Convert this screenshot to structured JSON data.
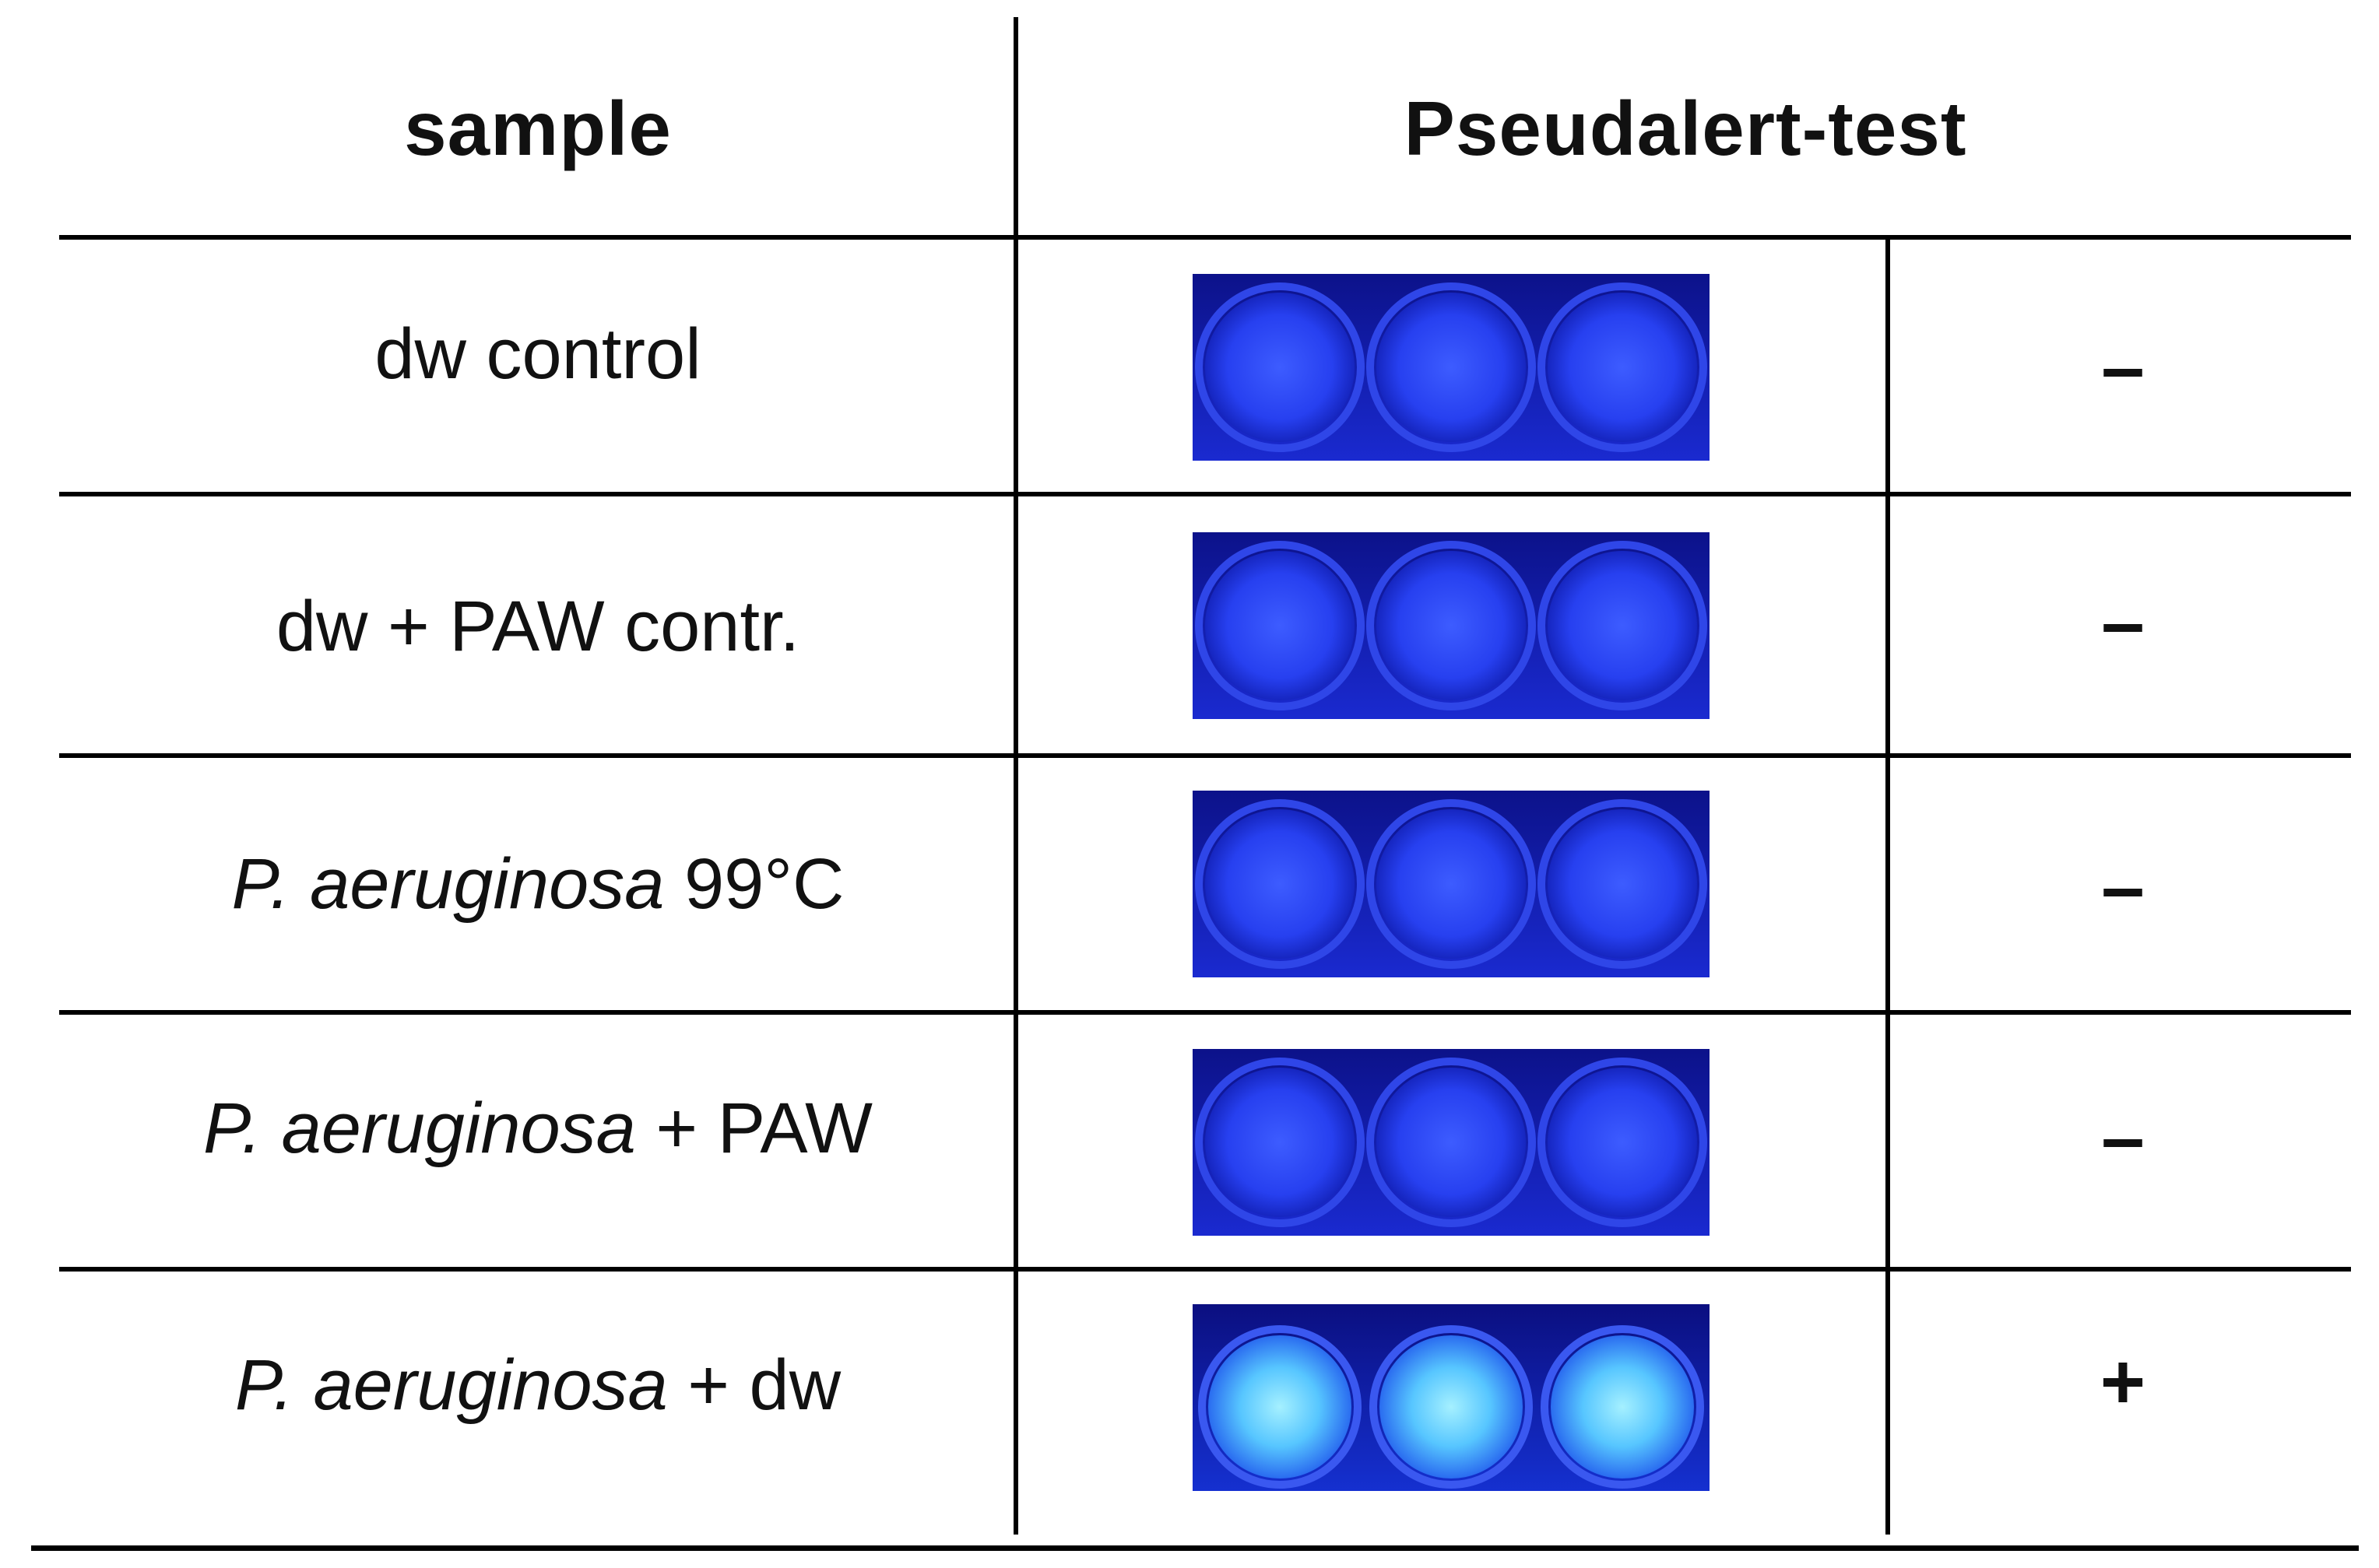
{
  "table": {
    "headers": {
      "sample": "sample",
      "test": "Pseudalert-test"
    },
    "rows": [
      {
        "sample_parts": {
          "italic": "",
          "rest": "dw control"
        },
        "result": "–",
        "plate_photo": "microplate-three-wells-dark-blue"
      },
      {
        "sample_parts": {
          "italic": "",
          "rest": "dw + PAW contr."
        },
        "result": "–",
        "plate_photo": "microplate-three-wells-dark-blue"
      },
      {
        "sample_parts": {
          "italic": "P. aeruginosa",
          "rest": "99°C"
        },
        "result": "–",
        "plate_photo": "microplate-three-wells-dark-blue"
      },
      {
        "sample_parts": {
          "italic": "P. aeruginosa",
          "rest": "+ PAW"
        },
        "result": "–",
        "plate_photo": "microplate-three-wells-dark-blue"
      },
      {
        "sample_parts": {
          "italic": "P. aeruginosa",
          "rest": "+ dw"
        },
        "result": "+",
        "plate_photo": "microplate-three-wells-fluorescent-cyan"
      }
    ]
  },
  "colors": {
    "plate_dark": "#1d2fd8",
    "plate_fluorescent": "#4fc8ff",
    "lines": "#000000"
  }
}
